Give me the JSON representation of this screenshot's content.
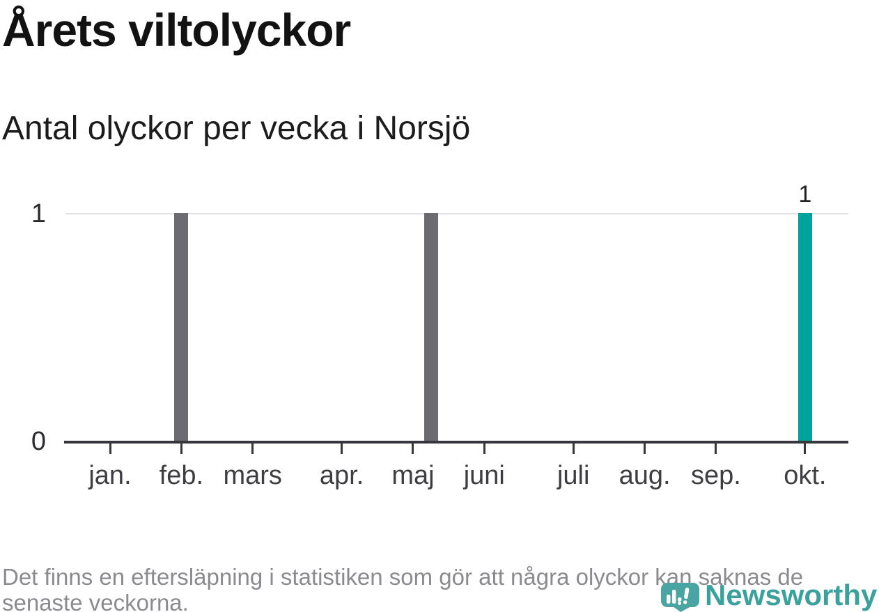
{
  "header": {
    "title": "Årets viltolyckor",
    "subtitle": "Antal olyckor per vecka i Norsjö"
  },
  "chart_data": {
    "type": "bar",
    "title": "Årets viltolyckor",
    "subtitle": "Antal olyckor per vecka i Norsjö",
    "ylabel": "",
    "xlabel": "",
    "ylim": [
      0,
      1
    ],
    "y_ticks": [
      "0",
      "1"
    ],
    "y_tick_values": [
      0,
      1
    ],
    "gridlines": [
      1
    ],
    "x_axis_weeks": {
      "first_week": 1,
      "last_week": 42
    },
    "default_week_value": 0,
    "bars": [
      {
        "week": 5,
        "month": "feb.",
        "value": 1,
        "color": "#6c6b71",
        "highlight": false
      },
      {
        "week": 19,
        "month": "maj",
        "value": 1,
        "color": "#6c6b71",
        "highlight": false
      },
      {
        "week": 40,
        "month": "okt.",
        "value": 1,
        "color": "#00a39b",
        "highlight": true,
        "data_label": "1"
      }
    ],
    "month_ticks": [
      {
        "week": 1,
        "label": "jan."
      },
      {
        "week": 5,
        "label": "feb."
      },
      {
        "week": 9,
        "label": "mars"
      },
      {
        "week": 14,
        "label": "apr."
      },
      {
        "week": 18,
        "label": "maj"
      },
      {
        "week": 22,
        "label": "juni"
      },
      {
        "week": 27,
        "label": "juli"
      },
      {
        "week": 31,
        "label": "aug."
      },
      {
        "week": 35,
        "label": "sep."
      },
      {
        "week": 40,
        "label": "okt."
      }
    ],
    "colors": {
      "bar_default": "#6c6b71",
      "bar_highlight": "#00a39b",
      "gridline": "#e3e3e5",
      "axis": "#36363c",
      "month_label": "#3d3d42",
      "y_label": "#2a2a2e",
      "title": "#121212",
      "footnote": "#8b8a90",
      "logo": "#3aa19d",
      "logo_icon": "#4aa5a2",
      "logo_icon_tail": "#3c948f"
    },
    "legend": "none"
  },
  "footer": {
    "lines": [
      "Det finns en eftersläpning i statistiken som gör att några olyckor kan saknas de",
      "senaste veckorna."
    ]
  },
  "logo": {
    "text": "Newsworthy",
    "icon": "newsworthy-speech-bubble-barchart-icon"
  }
}
